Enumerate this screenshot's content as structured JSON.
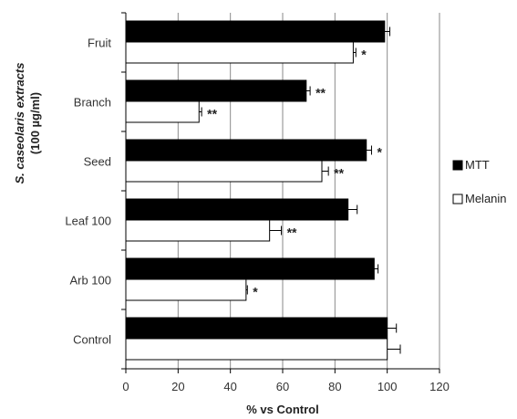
{
  "chart_data": {
    "type": "bar",
    "orientation": "horizontal",
    "categories": [
      "Fruit",
      "Branch",
      "Seed",
      "Leaf 100",
      "Arb 100",
      "Control"
    ],
    "series": [
      {
        "name": "MTT",
        "color": "#000000",
        "values": [
          99,
          69,
          92,
          85,
          95,
          100
        ],
        "errors": [
          2,
          1.5,
          2,
          3.5,
          1.5,
          3.5
        ],
        "significance": [
          "",
          "**",
          "*",
          "",
          "",
          ""
        ]
      },
      {
        "name": "Melanin",
        "color": "#ffffff",
        "values": [
          87,
          28,
          75,
          55,
          46,
          100
        ],
        "errors": [
          1,
          1,
          2.5,
          4.5,
          0.5,
          5
        ],
        "significance": [
          "*",
          "**",
          "**",
          "**",
          "*",
          ""
        ]
      }
    ],
    "xlabel": "% vs Control",
    "ylabel_line1": "S. caseolaris extracts",
    "ylabel_line2": "(100 µg/ml)",
    "xlim": [
      0,
      120
    ],
    "xticks": [
      0,
      20,
      40,
      60,
      80,
      100,
      120
    ],
    "grid": "vertical",
    "legend_position": "right"
  }
}
